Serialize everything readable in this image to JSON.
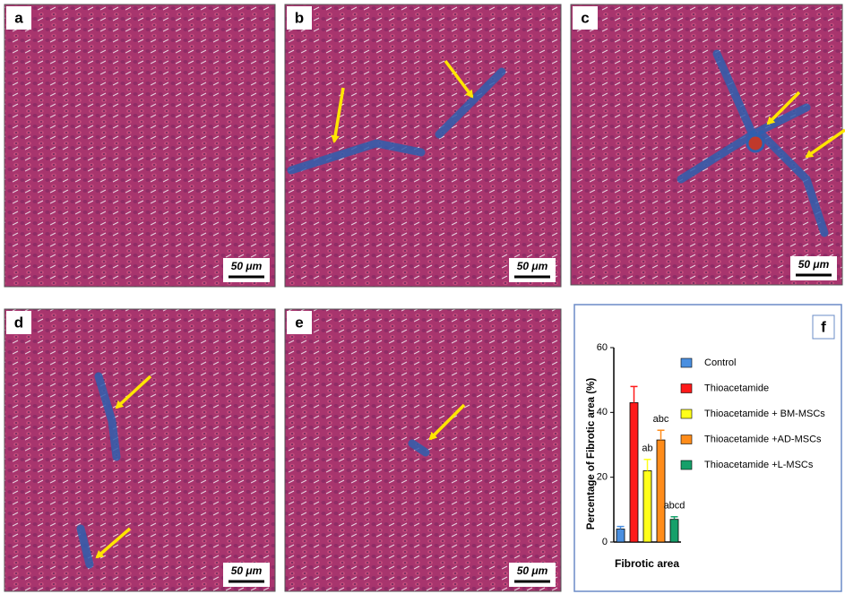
{
  "panels": [
    {
      "label": "a",
      "scale": "50 μm"
    },
    {
      "label": "b",
      "scale": "50 μm"
    },
    {
      "label": "c",
      "scale": "50 μm"
    },
    {
      "label": "d",
      "scale": "50 μm"
    },
    {
      "label": "e",
      "scale": "50 μm"
    }
  ],
  "chart_data": {
    "type": "bar",
    "label": "f",
    "y_label": "Percentage of Fibrotic area (%)",
    "x_label": "Fibrotic area",
    "categories": [
      "Fibrotic area"
    ],
    "ylim": [
      0,
      60
    ],
    "yticks": [
      0,
      20,
      40,
      60
    ],
    "series": [
      {
        "name": "Control",
        "color": "#4a8fe0",
        "values": [
          4
        ],
        "errors": [
          0.8
        ]
      },
      {
        "name": "Thioacetamide",
        "color": "#ff1a1a",
        "values": [
          43
        ],
        "errors": [
          5
        ]
      },
      {
        "name": "Thioacetamide + BM-MSCs",
        "color": "#ffff1a",
        "values": [
          22
        ],
        "errors": [
          3.5
        ],
        "annotation": "ab"
      },
      {
        "name": "Thioacetamide +AD-MSCs",
        "color": "#ff8c1a",
        "values": [
          31.5
        ],
        "errors": [
          3
        ],
        "annotation": "abc"
      },
      {
        "name": "Thioacetamide +L-MSCs",
        "color": "#16a06a",
        "values": [
          7
        ],
        "errors": [
          0.8
        ],
        "annotation": "abcd"
      }
    ]
  }
}
